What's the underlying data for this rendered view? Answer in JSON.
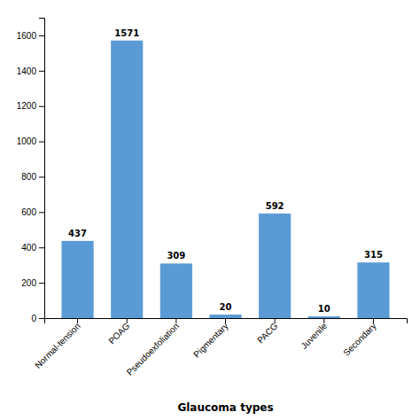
{
  "chart_data": {
    "type": "bar",
    "xlabel": "Glaucoma types",
    "categories": [
      "Normal-tension",
      "POAG",
      "Pseudoexfoliation",
      "Pigmentary",
      "PACG",
      "Juvenile",
      "Secondary"
    ],
    "values": [
      437,
      1571,
      309,
      20,
      592,
      10,
      315
    ],
    "color": "#5B9BD5",
    "ylim": [
      0,
      1700
    ],
    "yticks": [
      0,
      200,
      400,
      600,
      800,
      1000,
      1200,
      1400,
      1600
    ],
    "data_labels": true
  }
}
